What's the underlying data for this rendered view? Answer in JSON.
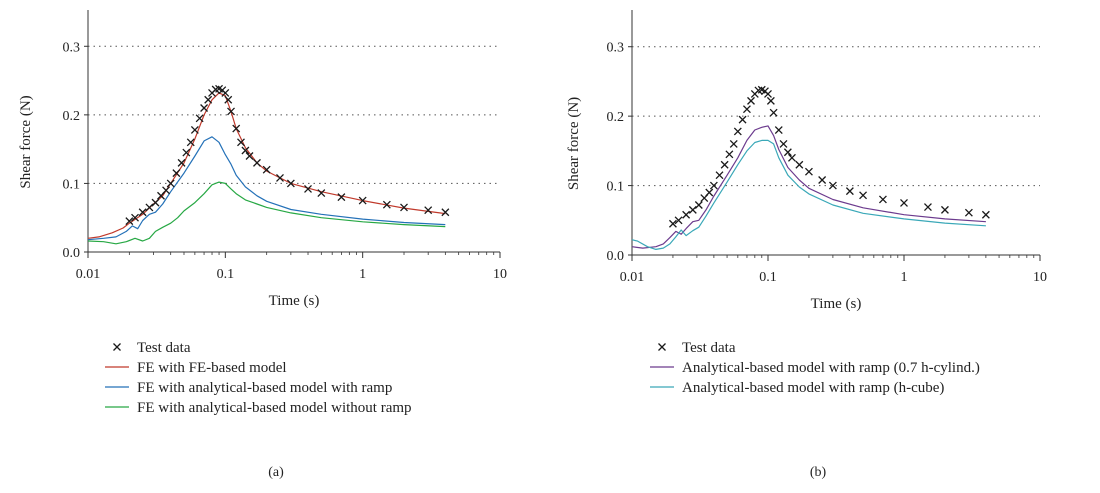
{
  "chart_data": [
    {
      "type": "line",
      "panel_label": "(a)",
      "xlabel": "Time (s)",
      "ylabel": "Shear force (N)",
      "x_scale": "log",
      "xlim": [
        0.01,
        10
      ],
      "ylim": [
        0,
        0.35
      ],
      "x_ticks": [
        0.01,
        0.1,
        1,
        10
      ],
      "x_tick_labels": [
        "0.01",
        "0.1",
        "1",
        "10"
      ],
      "y_ticks": [
        0,
        0.1,
        0.2,
        0.3
      ],
      "y_tick_labels": [
        "0.0",
        "0.1",
        "0.2",
        "0.3"
      ],
      "grid": "horizontal dotted",
      "legend_position": "below",
      "series": [
        {
          "name": "Test data",
          "marker": "x",
          "color": "#1a1a1a",
          "x": [
            0.02,
            0.022,
            0.025,
            0.028,
            0.031,
            0.034,
            0.037,
            0.04,
            0.044,
            0.048,
            0.052,
            0.056,
            0.06,
            0.065,
            0.07,
            0.075,
            0.08,
            0.085,
            0.09,
            0.095,
            0.1,
            0.105,
            0.11,
            0.12,
            0.13,
            0.14,
            0.15,
            0.17,
            0.2,
            0.25,
            0.3,
            0.4,
            0.5,
            0.7,
            1,
            1.5,
            2,
            3,
            4
          ],
          "y": [
            0.045,
            0.05,
            0.058,
            0.065,
            0.072,
            0.082,
            0.09,
            0.1,
            0.115,
            0.13,
            0.145,
            0.16,
            0.178,
            0.195,
            0.21,
            0.222,
            0.232,
            0.237,
            0.238,
            0.236,
            0.232,
            0.222,
            0.205,
            0.18,
            0.16,
            0.148,
            0.14,
            0.13,
            0.12,
            0.108,
            0.1,
            0.092,
            0.086,
            0.08,
            0.075,
            0.069,
            0.065,
            0.061,
            0.058
          ]
        },
        {
          "name": "FE with FE-based model",
          "marker": "line",
          "color": "#c0392b",
          "x": [
            0.01,
            0.012,
            0.015,
            0.018,
            0.02,
            0.025,
            0.03,
            0.035,
            0.04,
            0.05,
            0.06,
            0.07,
            0.08,
            0.09,
            0.1,
            0.11,
            0.12,
            0.14,
            0.17,
            0.2,
            0.3,
            0.5,
            1,
            2,
            4
          ],
          "y": [
            0.02,
            0.022,
            0.028,
            0.035,
            0.042,
            0.055,
            0.07,
            0.082,
            0.1,
            0.13,
            0.165,
            0.2,
            0.222,
            0.232,
            0.228,
            0.205,
            0.18,
            0.152,
            0.13,
            0.118,
            0.1,
            0.088,
            0.075,
            0.064,
            0.056
          ]
        },
        {
          "name": "FE with analytical-based model with ramp",
          "marker": "line",
          "color": "#2471b8",
          "x": [
            0.01,
            0.013,
            0.016,
            0.019,
            0.021,
            0.023,
            0.025,
            0.028,
            0.031,
            0.035,
            0.04,
            0.05,
            0.06,
            0.07,
            0.08,
            0.09,
            0.1,
            0.11,
            0.12,
            0.14,
            0.17,
            0.2,
            0.3,
            0.5,
            1,
            2,
            4
          ],
          "y": [
            0.018,
            0.02,
            0.022,
            0.03,
            0.038,
            0.034,
            0.046,
            0.055,
            0.058,
            0.07,
            0.088,
            0.115,
            0.14,
            0.162,
            0.168,
            0.16,
            0.142,
            0.128,
            0.112,
            0.095,
            0.082,
            0.074,
            0.062,
            0.055,
            0.048,
            0.043,
            0.04
          ]
        },
        {
          "name": "FE with analytical-based model without ramp",
          "marker": "line",
          "color": "#27a844",
          "x": [
            0.01,
            0.013,
            0.016,
            0.019,
            0.022,
            0.025,
            0.028,
            0.031,
            0.035,
            0.04,
            0.045,
            0.05,
            0.06,
            0.07,
            0.08,
            0.09,
            0.1,
            0.11,
            0.12,
            0.14,
            0.17,
            0.2,
            0.3,
            0.5,
            1,
            2,
            4
          ],
          "y": [
            0.016,
            0.015,
            0.012,
            0.015,
            0.02,
            0.016,
            0.02,
            0.03,
            0.036,
            0.042,
            0.05,
            0.06,
            0.072,
            0.085,
            0.098,
            0.102,
            0.1,
            0.092,
            0.085,
            0.076,
            0.07,
            0.065,
            0.057,
            0.05,
            0.044,
            0.04,
            0.037
          ]
        }
      ]
    },
    {
      "type": "line",
      "panel_label": "(b)",
      "xlabel": "Time (s)",
      "ylabel": "Shear force (N)",
      "x_scale": "log",
      "xlim": [
        0.01,
        10
      ],
      "ylim": [
        0,
        0.35
      ],
      "x_ticks": [
        0.01,
        0.1,
        1,
        10
      ],
      "x_tick_labels": [
        "0.01",
        "0.1",
        "1",
        "10"
      ],
      "y_ticks": [
        0,
        0.1,
        0.2,
        0.3
      ],
      "y_tick_labels": [
        "0.0",
        "0.1",
        "0.2",
        "0.3"
      ],
      "grid": "horizontal dotted",
      "legend_position": "below",
      "series": [
        {
          "name": "Test data",
          "marker": "x",
          "color": "#1a1a1a",
          "x": [
            0.02,
            0.022,
            0.025,
            0.028,
            0.031,
            0.034,
            0.037,
            0.04,
            0.044,
            0.048,
            0.052,
            0.056,
            0.06,
            0.065,
            0.07,
            0.075,
            0.08,
            0.085,
            0.09,
            0.095,
            0.1,
            0.105,
            0.11,
            0.12,
            0.13,
            0.14,
            0.15,
            0.17,
            0.2,
            0.25,
            0.3,
            0.4,
            0.5,
            0.7,
            1,
            1.5,
            2,
            3,
            4
          ],
          "y": [
            0.045,
            0.05,
            0.058,
            0.065,
            0.072,
            0.082,
            0.09,
            0.1,
            0.115,
            0.13,
            0.145,
            0.16,
            0.178,
            0.195,
            0.21,
            0.222,
            0.232,
            0.237,
            0.238,
            0.236,
            0.232,
            0.222,
            0.205,
            0.18,
            0.16,
            0.148,
            0.14,
            0.13,
            0.12,
            0.108,
            0.1,
            0.092,
            0.086,
            0.08,
            0.075,
            0.069,
            0.065,
            0.061,
            0.058
          ]
        },
        {
          "name": "Analytical-based model with ramp (0.7 h-cylind.)",
          "marker": "line",
          "color": "#6c3b8e",
          "x": [
            0.01,
            0.012,
            0.015,
            0.017,
            0.019,
            0.021,
            0.023,
            0.025,
            0.028,
            0.031,
            0.035,
            0.04,
            0.05,
            0.06,
            0.07,
            0.08,
            0.09,
            0.1,
            0.11,
            0.12,
            0.14,
            0.17,
            0.2,
            0.3,
            0.5,
            1,
            2,
            4
          ],
          "y": [
            0.012,
            0.01,
            0.012,
            0.016,
            0.025,
            0.034,
            0.03,
            0.038,
            0.048,
            0.05,
            0.065,
            0.085,
            0.115,
            0.14,
            0.165,
            0.18,
            0.184,
            0.186,
            0.172,
            0.152,
            0.126,
            0.108,
            0.096,
            0.08,
            0.068,
            0.058,
            0.052,
            0.048
          ]
        },
        {
          "name": "Analytical-based model with ramp (h-cube)",
          "marker": "line",
          "color": "#3aa8b8",
          "x": [
            0.01,
            0.011,
            0.013,
            0.015,
            0.017,
            0.019,
            0.021,
            0.023,
            0.025,
            0.028,
            0.031,
            0.035,
            0.04,
            0.05,
            0.06,
            0.07,
            0.08,
            0.09,
            0.1,
            0.11,
            0.12,
            0.14,
            0.17,
            0.2,
            0.3,
            0.5,
            1,
            2,
            4
          ],
          "y": [
            0.022,
            0.02,
            0.012,
            0.008,
            0.01,
            0.016,
            0.026,
            0.036,
            0.028,
            0.035,
            0.04,
            0.056,
            0.075,
            0.105,
            0.13,
            0.15,
            0.162,
            0.165,
            0.165,
            0.16,
            0.14,
            0.115,
            0.098,
            0.088,
            0.072,
            0.06,
            0.052,
            0.046,
            0.042
          ]
        }
      ]
    }
  ]
}
